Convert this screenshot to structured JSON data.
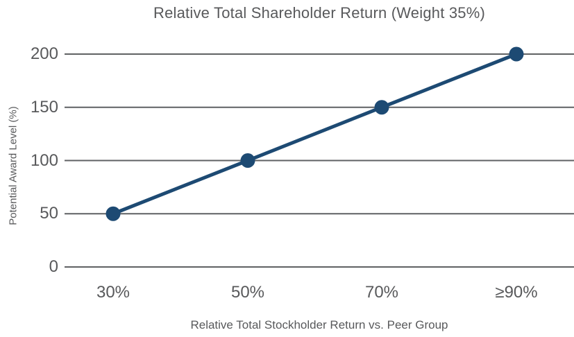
{
  "chart_data": {
    "type": "line",
    "title": "Relative Total Shareholder Return (Weight 35%)",
    "xlabel": "Relative Total Stockholder Return vs. Peer Group",
    "ylabel": "Potential Award Level (%)",
    "categories": [
      "30%",
      "50%",
      "70%",
      "≥90%"
    ],
    "values": [
      50,
      100,
      150,
      200
    ],
    "yticks": [
      0,
      50,
      100,
      150,
      200
    ],
    "ylim": [
      0,
      200
    ],
    "grid": "horizontal-only",
    "legend_position": "none",
    "line_color": "#1d4a73",
    "grid_color": "#5f6163",
    "text_color": "#58595b",
    "background_color": "#ffffff"
  }
}
